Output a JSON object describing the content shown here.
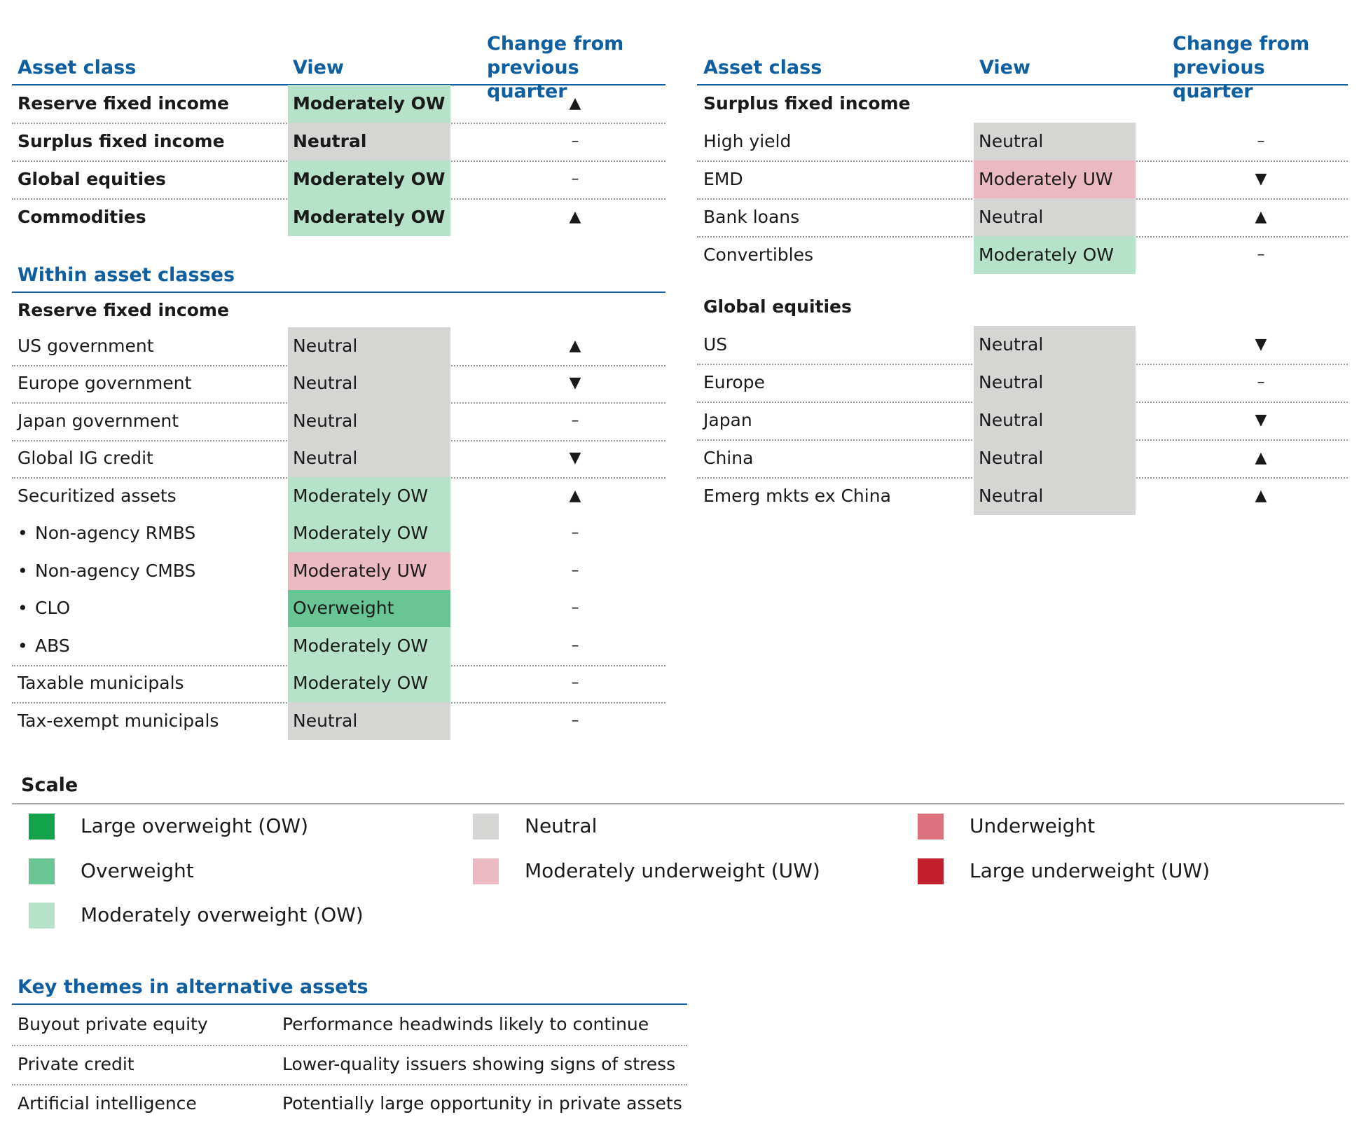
{
  "left": {
    "headers": [
      "Asset class",
      "View",
      "Change from previous quarter"
    ],
    "rows": [
      {
        "asset": "Reserve fixed income",
        "view": "Moderately OW",
        "color": "#b5e2c9",
        "change": "▲"
      },
      {
        "asset": "Surplus fixed income",
        "view": "Neutral",
        "color": "#d5d5d3",
        "change": "–"
      },
      {
        "asset": "Global equities",
        "view": "Moderately OW",
        "color": "#b5e2c9",
        "change": "–"
      },
      {
        "asset": "Commodities",
        "view": "Moderately OW",
        "color": "#b5e2c9",
        "change": "▲"
      }
    ]
  },
  "within": {
    "title": "Within asset classes",
    "subtitle": "Reserve fixed income",
    "rows": [
      {
        "asset": "US government",
        "view": "Neutral",
        "color": "#d5d5d3",
        "change": "▲"
      },
      {
        "asset": "Europe government",
        "view": "Neutral",
        "color": "#d5d5d3",
        "change": "▼"
      },
      {
        "asset": "Japan government",
        "view": "Neutral",
        "color": "#d5d5d3",
        "change": "–"
      },
      {
        "asset": "Global IG credit",
        "view": "Neutral",
        "color": "#d5d5d3",
        "change": "▼"
      },
      {
        "asset": "Securitized assets",
        "view": "Moderately OW",
        "color": "#b5e2c9",
        "change": "▲",
        "children": [
          {
            "asset": "Non-agency RMBS",
            "view": "Moderately OW",
            "color": "#b5e2c9",
            "change": "–"
          },
          {
            "asset": "Non-agency CMBS",
            "view": "Moderately UW",
            "color": "#ebb9c1",
            "change": "–"
          },
          {
            "asset": "CLO",
            "view": "Overweight",
            "color": "#6ac595",
            "change": "–"
          },
          {
            "asset": "ABS",
            "view": "Moderately OW",
            "color": "#b5e2c9",
            "change": "–"
          }
        ]
      },
      {
        "asset": "Taxable municipals",
        "view": "Moderately OW",
        "color": "#b5e2c9",
        "change": "–"
      },
      {
        "asset": "Tax-exempt municipals",
        "view": "Neutral",
        "color": "#d5d5d3",
        "change": "–"
      }
    ]
  },
  "right": {
    "headers": [
      "Asset class",
      "View",
      "Change from previous quarter"
    ],
    "groups": [
      {
        "title": "Surplus fixed income",
        "rows": [
          {
            "asset": "High yield",
            "view": "Neutral",
            "color": "#d5d5d3",
            "change": "–"
          },
          {
            "asset": "EMD",
            "view": "Moderately UW",
            "color": "#ebb9c1",
            "change": "▼"
          },
          {
            "asset": "Bank loans",
            "view": "Neutral",
            "color": "#d5d5d3",
            "change": "▲"
          },
          {
            "asset": "Convertibles",
            "view": "Moderately OW",
            "color": "#b5e2c9",
            "change": "–"
          }
        ]
      },
      {
        "title": "Global equities",
        "rows": [
          {
            "asset": "US",
            "view": "Neutral",
            "color": "#d5d5d3",
            "change": "▼"
          },
          {
            "asset": "Europe",
            "view": "Neutral",
            "color": "#d5d5d3",
            "change": "–"
          },
          {
            "asset": "Japan",
            "view": "Neutral",
            "color": "#d5d5d3",
            "change": "▼"
          },
          {
            "asset": "China",
            "view": "Neutral",
            "color": "#d5d5d3",
            "change": "▲"
          },
          {
            "asset": "Emerg mkts ex China",
            "view": "Neutral",
            "color": "#d5d5d3",
            "change": "▲"
          }
        ]
      }
    ]
  },
  "scale": {
    "title": "Scale",
    "columns": [
      [
        {
          "label": "Large overweight (OW)",
          "color": "#13a34a"
        },
        {
          "label": "Overweight",
          "color": "#6ac595"
        },
        {
          "label": "Moderately overweight (OW)",
          "color": "#b5e2c9"
        }
      ],
      [
        {
          "label": "Neutral",
          "color": "#d5d5d3"
        },
        {
          "label": "Moderately underweight (UW)",
          "color": "#ebb9c1"
        }
      ],
      [
        {
          "label": "Underweight",
          "color": "#db727e"
        },
        {
          "label": "Large underweight (UW)",
          "color": "#c01f2b"
        }
      ]
    ]
  },
  "themes": {
    "title": "Key themes in alternative assets",
    "rows": [
      [
        "Buyout private equity",
        "Performance headwinds likely to continue"
      ],
      [
        "Private credit",
        "Lower-quality issuers showing signs of stress"
      ],
      [
        "Artificial intelligence",
        "Potentially large opportunity in private assets"
      ]
    ]
  }
}
